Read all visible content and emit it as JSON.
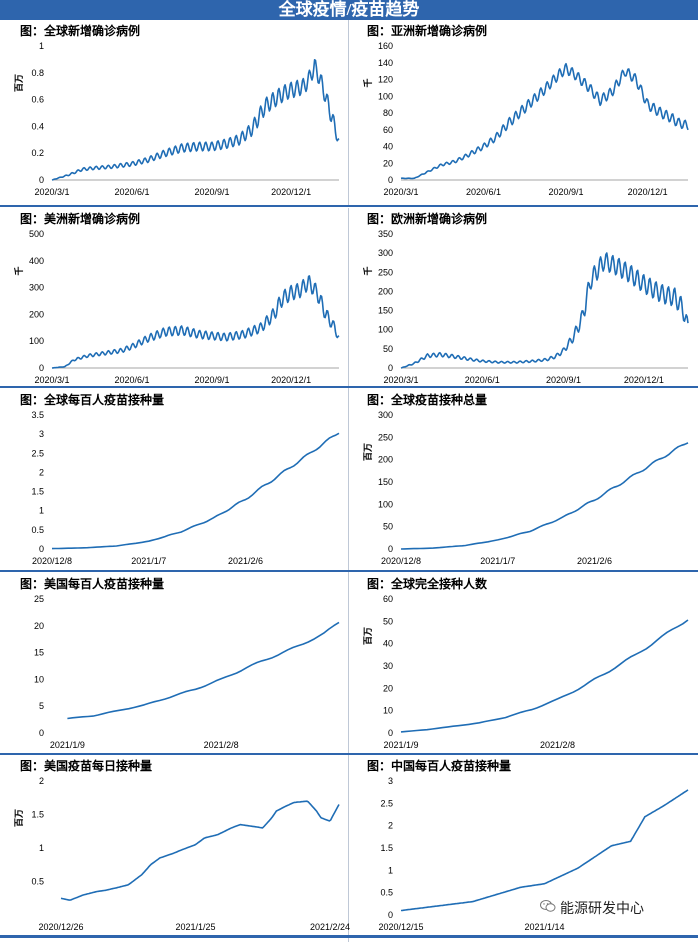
{
  "header": {
    "title": "全球疫情/疫苗趋势"
  },
  "watermark": {
    "text": "能源研发中心",
    "icon": "wechat-icon"
  },
  "colors": {
    "header": "#2e65ad",
    "line": "#1f6db5"
  },
  "chart_data": [
    {
      "type": "line",
      "title": "图：全球新增确诊病例",
      "ylabel": "百万",
      "ylim": [
        0,
        1
      ],
      "yticks": [
        0,
        0.2,
        0.4,
        0.6,
        0.8,
        1
      ],
      "ytick_labels": [
        "0",
        "0.2",
        "0.4",
        "0.6",
        "0.8",
        "1"
      ],
      "xlim": [
        0,
        330
      ],
      "xticks": [
        0,
        92,
        184,
        275
      ],
      "xtick_labels": [
        "2020/3/1",
        "2020/6/1",
        "2020/9/1",
        "2020/12/1"
      ],
      "baseline_axis": true,
      "series": [
        {
          "x": [
            0,
            20,
            35,
            50,
            70,
            92,
            110,
            130,
            150,
            170,
            184,
            200,
            215,
            230,
            245,
            260,
            270,
            280,
            290,
            296,
            302,
            310,
            318,
            324,
            330
          ],
          "y": [
            0,
            0.04,
            0.08,
            0.09,
            0.1,
            0.12,
            0.15,
            0.2,
            0.24,
            0.25,
            0.25,
            0.27,
            0.3,
            0.38,
            0.55,
            0.62,
            0.66,
            0.68,
            0.7,
            0.76,
            0.85,
            0.72,
            0.55,
            0.42,
            0.28
          ],
          "weekly_amp": 0.06
        }
      ]
    },
    {
      "type": "line",
      "title": "图：亚洲新增确诊病例",
      "ylabel": "千",
      "ylim": [
        0,
        160
      ],
      "yticks": [
        0,
        20,
        40,
        60,
        80,
        100,
        120,
        140,
        160
      ],
      "ytick_labels": [
        "0",
        "20",
        "40",
        "60",
        "80",
        "100",
        "120",
        "140",
        "160"
      ],
      "xlim": [
        0,
        320
      ],
      "xticks": [
        0,
        92,
        184,
        275
      ],
      "xtick_labels": [
        "2020/3/1",
        "2020/6/1",
        "2020/9/1",
        "2020/12/1"
      ],
      "baseline_axis": true,
      "series": [
        {
          "x": [
            0,
            15,
            30,
            45,
            60,
            75,
            92,
            105,
            120,
            140,
            160,
            175,
            184,
            195,
            210,
            222,
            235,
            250,
            262,
            275,
            290,
            300,
            310,
            320
          ],
          "y": [
            2,
            2,
            10,
            18,
            22,
            30,
            40,
            50,
            68,
            88,
            108,
            125,
            133,
            125,
            110,
            95,
            105,
            130,
            120,
            90,
            80,
            75,
            68,
            65
          ],
          "weekly_amp": 6
        }
      ]
    },
    {
      "type": "line",
      "title": "图：美洲新增确诊病例",
      "ylabel": "千",
      "ylim": [
        0,
        500
      ],
      "yticks": [
        0,
        100,
        200,
        300,
        400,
        500
      ],
      "ytick_labels": [
        "0",
        "100",
        "200",
        "300",
        "400",
        "500"
      ],
      "xlim": [
        0,
        330
      ],
      "xticks": [
        0,
        92,
        184,
        275
      ],
      "xtick_labels": [
        "2020/3/1",
        "2020/6/1",
        "2020/9/1",
        "2020/12/1"
      ],
      "baseline_axis": true,
      "series": [
        {
          "x": [
            0,
            15,
            25,
            40,
            60,
            80,
            92,
            110,
            130,
            150,
            170,
            184,
            200,
            220,
            240,
            255,
            265,
            275,
            285,
            295,
            305,
            315,
            325,
            330
          ],
          "y": [
            0,
            5,
            30,
            45,
            55,
            65,
            80,
            110,
            135,
            140,
            125,
            120,
            115,
            125,
            150,
            200,
            260,
            280,
            290,
            320,
            280,
            200,
            150,
            110
          ],
          "weekly_amp": 28
        }
      ]
    },
    {
      "type": "line",
      "title": "图：欧洲新增确诊病例",
      "ylabel": "千",
      "ylim": [
        0,
        350
      ],
      "yticks": [
        0,
        50,
        100,
        150,
        200,
        250,
        300,
        350
      ],
      "ytick_labels": [
        "0",
        "50",
        "100",
        "150",
        "200",
        "250",
        "300",
        "350"
      ],
      "xlim": [
        0,
        325
      ],
      "xticks": [
        0,
        92,
        184,
        275
      ],
      "xtick_labels": [
        "2020/3/1",
        "2020/6/1",
        "2020/9/1",
        "2020/12/1"
      ],
      "baseline_axis": true,
      "series": [
        {
          "x": [
            0,
            15,
            30,
            45,
            60,
            80,
            92,
            110,
            130,
            150,
            165,
            175,
            184,
            195,
            205,
            215,
            230,
            245,
            260,
            275,
            290,
            300,
            310,
            318,
            325
          ],
          "y": [
            0,
            12,
            32,
            35,
            30,
            22,
            18,
            15,
            15,
            18,
            22,
            30,
            45,
            80,
            130,
            230,
            280,
            265,
            245,
            220,
            200,
            190,
            185,
            160,
            110
          ],
          "weekly_amp": 24
        }
      ]
    },
    {
      "type": "line",
      "title": "图：全球每百人疫苗接种量",
      "ylim": [
        0,
        3.5
      ],
      "yticks": [
        0,
        0.5,
        1,
        1.5,
        2,
        2.5,
        3,
        3.5
      ],
      "ytick_labels": [
        "0",
        "0.5",
        "1",
        "1.5",
        "2",
        "2.5",
        "3",
        "3.5"
      ],
      "xlim": [
        0,
        89
      ],
      "xticks": [
        0,
        30,
        60
      ],
      "xtick_labels": [
        "2020/12/8",
        "2021/1/7",
        "2021/2/6"
      ],
      "baseline_axis": false,
      "series": [
        {
          "x": [
            0,
            10,
            20,
            30,
            40,
            50,
            60,
            70,
            80,
            89
          ],
          "y": [
            0.01,
            0.03,
            0.08,
            0.2,
            0.45,
            0.8,
            1.3,
            1.9,
            2.5,
            3.05
          ],
          "weekly_amp": 0.03
        }
      ]
    },
    {
      "type": "line",
      "title": "图：全球疫苗接种总量",
      "ylabel": "百万",
      "ylim": [
        0,
        300
      ],
      "yticks": [
        0,
        50,
        100,
        150,
        200,
        250,
        300
      ],
      "ytick_labels": [
        "0",
        "50",
        "100",
        "150",
        "200",
        "250",
        "300"
      ],
      "xlim": [
        0,
        89
      ],
      "xticks": [
        0,
        30,
        60
      ],
      "xtick_labels": [
        "2020/12/8",
        "2021/1/7",
        "2021/2/6"
      ],
      "baseline_axis": false,
      "series": [
        {
          "x": [
            0,
            10,
            20,
            30,
            40,
            50,
            60,
            70,
            80,
            89
          ],
          "y": [
            0,
            2,
            8,
            20,
            40,
            70,
            110,
            155,
            200,
            240
          ],
          "weekly_amp": 2.5
        }
      ]
    },
    {
      "type": "line",
      "title": "图：美国每百人疫苗接种量",
      "ylim": [
        0,
        25
      ],
      "yticks": [
        0,
        5,
        10,
        15,
        20,
        25
      ],
      "ytick_labels": [
        "0",
        "5",
        "10",
        "15",
        "20",
        "25"
      ],
      "xlim": [
        -3,
        53
      ],
      "xticks": [
        0,
        30
      ],
      "xtick_labels": [
        "2021/1/9",
        "2021/2/8"
      ],
      "baseline_axis": false,
      "series": [
        {
          "x": [
            0,
            5,
            10,
            15,
            20,
            25,
            30,
            35,
            40,
            45,
            50,
            53
          ],
          "y": [
            2.7,
            3.2,
            4.2,
            5.2,
            6.7,
            8.2,
            10,
            12.2,
            14.2,
            16.2,
            18.5,
            20.7
          ],
          "weekly_amp": 0.15
        }
      ]
    },
    {
      "type": "line",
      "title": "图：全球完全接种人数",
      "ylabel": "百万",
      "ylim": [
        0,
        60
      ],
      "yticks": [
        0,
        10,
        20,
        30,
        40,
        50,
        60
      ],
      "ytick_labels": [
        "0",
        "10",
        "20",
        "30",
        "40",
        "50",
        "60"
      ],
      "xlim": [
        0,
        55
      ],
      "xticks": [
        0,
        30
      ],
      "xtick_labels": [
        "2021/1/9",
        "2021/2/8"
      ],
      "baseline_axis": false,
      "series": [
        {
          "x": [
            0,
            5,
            10,
            15,
            20,
            25,
            30,
            35,
            40,
            45,
            50,
            55
          ],
          "y": [
            0.5,
            1.5,
            3,
            4.5,
            7,
            10.5,
            15,
            21,
            28,
            35,
            43,
            51
          ],
          "weekly_amp": 0.5
        }
      ]
    },
    {
      "type": "line",
      "title": "图：美国疫苗每日接种量",
      "ylabel": "百万",
      "ylim": [
        0,
        2
      ],
      "yticks": [
        0.5,
        1,
        1.5,
        2
      ],
      "ytick_labels": [
        "0.5",
        "1",
        "1.5",
        "2"
      ],
      "xlim": [
        -2,
        62
      ],
      "xticks": [
        0,
        30,
        60
      ],
      "xtick_labels": [
        "2020/12/26",
        "2021/1/25",
        "2021/2/24"
      ],
      "baseline_axis": false,
      "series": [
        {
          "x": [
            0,
            2,
            5,
            8,
            10,
            12,
            15,
            18,
            20,
            22,
            25,
            28,
            30,
            32,
            35,
            38,
            40,
            42,
            45,
            47,
            48,
            50,
            52,
            55,
            57,
            58,
            60,
            62
          ],
          "y": [
            0.25,
            0.22,
            0.3,
            0.35,
            0.37,
            0.4,
            0.45,
            0.6,
            0.75,
            0.85,
            0.92,
            1.0,
            1.05,
            1.15,
            1.2,
            1.3,
            1.35,
            1.33,
            1.3,
            1.45,
            1.55,
            1.62,
            1.68,
            1.7,
            1.55,
            1.45,
            1.4,
            1.65
          ],
          "weekly_amp": 0
        }
      ]
    },
    {
      "type": "line",
      "title": "图：中国每百人疫苗接种量",
      "ylim": [
        0,
        3
      ],
      "yticks": [
        0,
        0.5,
        1,
        1.5,
        2,
        2.5,
        3
      ],
      "ytick_labels": [
        "0",
        "0.5",
        "1",
        "1.5",
        "2",
        "2.5",
        "3"
      ],
      "xlim": [
        0,
        60
      ],
      "xticks": [
        0,
        30
      ],
      "xtick_labels": [
        "2020/12/15",
        "2021/1/14"
      ],
      "baseline_axis": false,
      "series": [
        {
          "x": [
            0,
            15,
            25,
            30,
            37,
            44,
            48,
            51,
            55,
            60
          ],
          "y": [
            0.1,
            0.3,
            0.62,
            0.7,
            1.05,
            1.55,
            1.65,
            2.2,
            2.45,
            2.8
          ],
          "weekly_amp": 0
        }
      ]
    }
  ]
}
